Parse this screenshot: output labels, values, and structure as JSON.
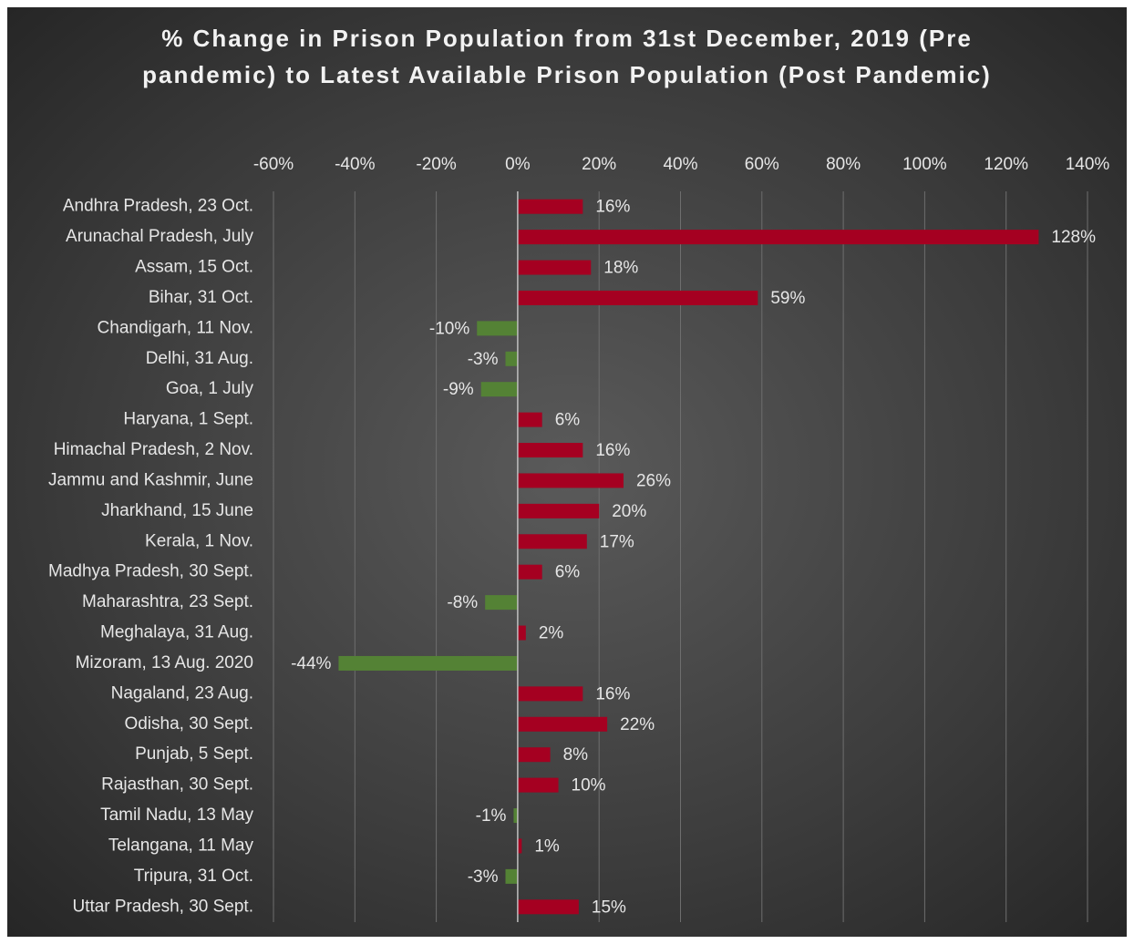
{
  "chart_data": {
    "type": "hbar",
    "title": "% Change in Prison Population from 31st December, 2019 (Pre pandemic) to Latest Available Prison Population (Post Pandemic)",
    "categories": [
      "Andhra Pradesh, 23 Oct.",
      "Arunachal Pradesh, July",
      "Assam, 15 Oct.",
      "Bihar, 31 Oct.",
      "Chandigarh, 11 Nov.",
      "Delhi, 31 Aug.",
      "Goa, 1 July",
      "Haryana, 1 Sept.",
      "Himachal Pradesh, 2 Nov.",
      "Jammu and Kashmir, June",
      "Jharkhand, 15 June",
      "Kerala, 1 Nov.",
      "Madhya Pradesh, 30 Sept.",
      "Maharashtra, 23 Sept.",
      "Meghalaya, 31 Aug.",
      "Mizoram, 13 Aug. 2020",
      "Nagaland, 23 Aug.",
      "Odisha, 30 Sept.",
      "Punjab, 5 Sept.",
      "Rajasthan, 30 Sept.",
      "Tamil Nadu, 13 May",
      "Telangana, 11 May",
      "Tripura, 31 Oct.",
      "Uttar Pradesh, 30 Sept."
    ],
    "values": [
      16,
      128,
      18,
      59,
      -10,
      -3,
      -9,
      6,
      16,
      26,
      20,
      17,
      6,
      -8,
      2,
      -44,
      16,
      22,
      8,
      10,
      -1,
      1,
      -3,
      15
    ],
    "value_labels": [
      "16%",
      "128%",
      "18%",
      "59%",
      "-10%",
      "-3%",
      "-9%",
      "6%",
      "16%",
      "26%",
      "20%",
      "17%",
      "6%",
      "-8%",
      "2%",
      "-44%",
      "16%",
      "22%",
      "8%",
      "10%",
      "-1%",
      "1%",
      "-3%",
      "15%"
    ],
    "positive_color": "#a50021",
    "negative_color": "#548235",
    "xlim": [
      -60,
      140
    ],
    "xticks": [
      {
        "value": -60,
        "label": "-60%"
      },
      {
        "value": -40,
        "label": "-40%"
      },
      {
        "value": -20,
        "label": "-20%"
      },
      {
        "value": 0,
        "label": "0%"
      },
      {
        "value": 20,
        "label": "20%"
      },
      {
        "value": 40,
        "label": "40%"
      },
      {
        "value": 60,
        "label": "60%"
      },
      {
        "value": 80,
        "label": "80%"
      },
      {
        "value": 100,
        "label": "100%"
      },
      {
        "value": 120,
        "label": "120%"
      },
      {
        "value": 140,
        "label": "140%"
      }
    ],
    "grid": true
  }
}
